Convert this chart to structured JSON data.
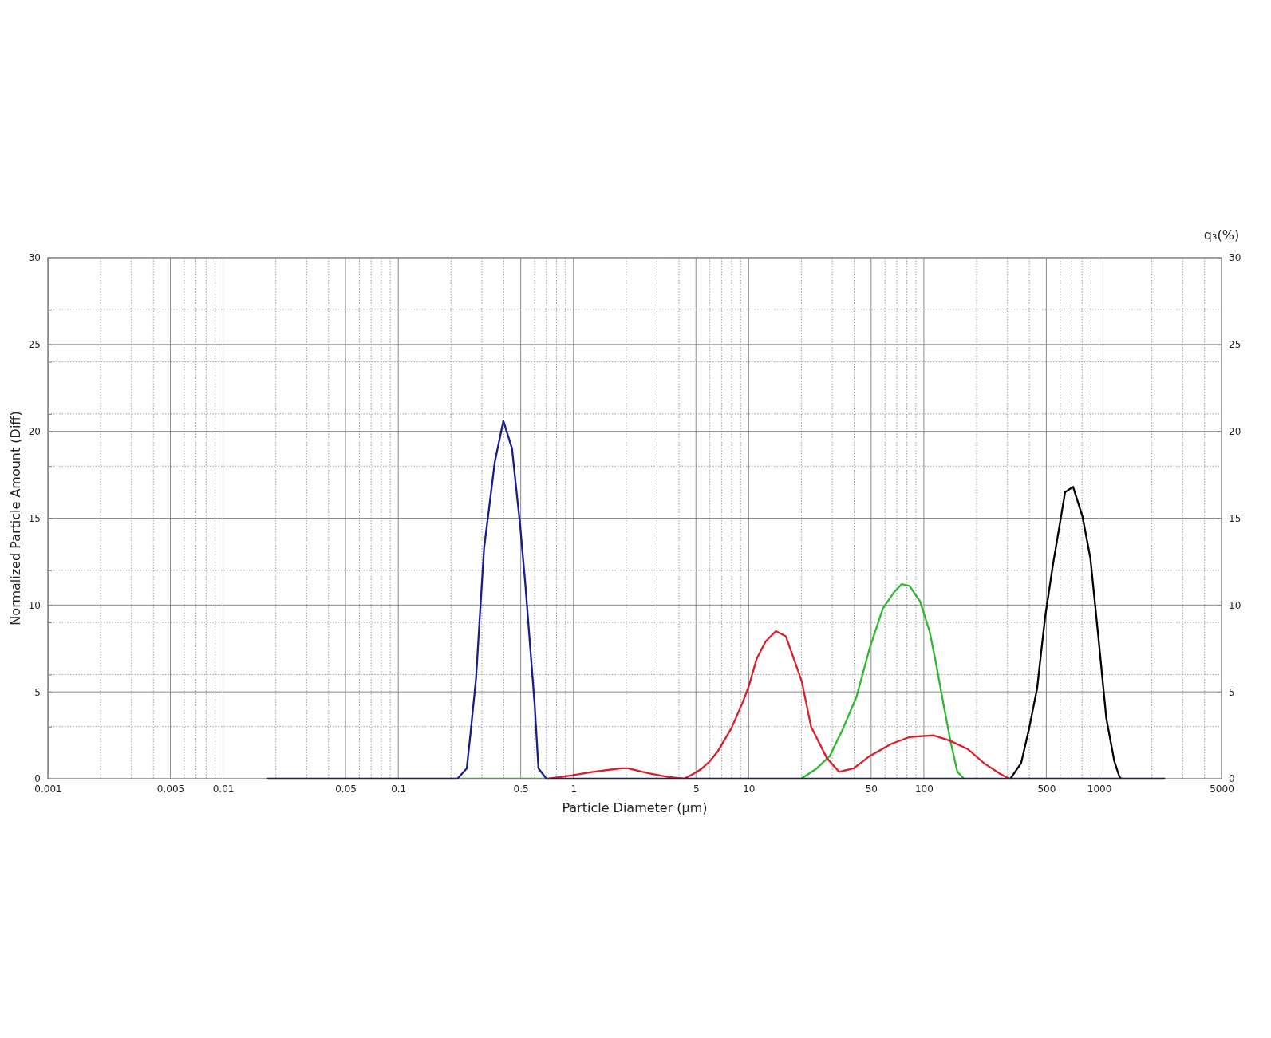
{
  "chart_data": {
    "type": "line",
    "xlabel": "Particle Diameter (μm)",
    "ylabel": "Normalized Particle Amount (Diff)",
    "y2label": "q₃(%)",
    "log": "x",
    "xlim": [
      0.001,
      5000
    ],
    "xticks": [
      0.001,
      {
        "value": 0.002,
        "label": null
      },
      {
        "value": 0.003,
        "label": null
      },
      {
        "value": 0.004,
        "label": null
      },
      0.005,
      {
        "value": 0.006,
        "label": null
      },
      {
        "value": 0.007,
        "label": null
      },
      {
        "value": 0.008,
        "label": null
      },
      {
        "value": 0.009,
        "label": null
      },
      0.01,
      {
        "value": 0.02,
        "label": null
      },
      {
        "value": 0.03,
        "label": null
      },
      {
        "value": 0.04,
        "label": null
      },
      0.05,
      {
        "value": 0.06,
        "label": null
      },
      {
        "value": 0.07,
        "label": null
      },
      {
        "value": 0.08,
        "label": null
      },
      {
        "value": 0.09,
        "label": null
      },
      0.1,
      {
        "value": 0.2,
        "label": null
      },
      {
        "value": 0.3,
        "label": null
      },
      {
        "value": 0.4,
        "label": null
      },
      0.5,
      {
        "value": 0.6,
        "label": null
      },
      {
        "value": 0.7,
        "label": null
      },
      {
        "value": 0.8,
        "label": null
      },
      {
        "value": 0.9,
        "label": null
      },
      1,
      {
        "value": 2,
        "label": null
      },
      {
        "value": 3,
        "label": null
      },
      {
        "value": 4,
        "label": null
      },
      5,
      {
        "value": 6,
        "label": null
      },
      {
        "value": 7,
        "label": null
      },
      {
        "value": 8,
        "label": null
      },
      {
        "value": 9,
        "label": null
      },
      10,
      {
        "value": 20,
        "label": null
      },
      {
        "value": 30,
        "label": null
      },
      {
        "value": 40,
        "label": null
      },
      50,
      {
        "value": 60,
        "label": null
      },
      {
        "value": 70,
        "label": null
      },
      {
        "value": 80,
        "label": null
      },
      {
        "value": 90,
        "label": null
      },
      100,
      {
        "value": 200,
        "label": null
      },
      {
        "value": 300,
        "label": null
      },
      {
        "value": 400,
        "label": null
      },
      500,
      {
        "value": 600,
        "label": null
      },
      {
        "value": 700,
        "label": null
      },
      {
        "value": 800,
        "label": null
      },
      {
        "value": 900,
        "label": null
      },
      1000,
      {
        "value": 2000,
        "label": null
      },
      {
        "value": 3000,
        "label": null
      },
      {
        "value": 4000,
        "label": null
      },
      5000
    ],
    "ylim": [
      0,
      30
    ],
    "yticks": [
      0,
      {
        "value": 3,
        "label": null
      },
      5,
      {
        "value": 6,
        "label": null
      },
      {
        "value": 9,
        "label": null
      },
      10,
      {
        "value": 12,
        "label": null
      },
      15,
      {
        "value": 18,
        "label": null
      },
      20,
      {
        "value": 21,
        "label": null
      },
      {
        "value": 24,
        "label": null
      },
      25,
      {
        "value": 27,
        "label": null
      },
      30
    ],
    "y2lim": [
      0,
      30
    ],
    "y2ticks": [
      0,
      5,
      10,
      15,
      20,
      25,
      30
    ],
    "grid": true,
    "series": [
      {
        "color": "#2eb82e",
        "x": [
          0.228,
          0.7,
          3,
          19.9,
          24.5,
          29,
          34.6,
          41.2,
          49,
          58.3,
          67.1,
          74.6,
          82.8,
          95.2,
          107.7,
          117.5,
          130.4,
          142.3,
          155.3,
          169.4
        ],
        "values": [
          0,
          0,
          null,
          0,
          0.6,
          1.3,
          2.9,
          4.7,
          7.5,
          9.8,
          10.7,
          11.2,
          11.1,
          10.2,
          8.5,
          6.6,
          4.1,
          2.1,
          0.4,
          0
        ]
      },
      {
        "color": "#dc1e2a",
        "x": [
          0.72,
          0.986,
          1.29,
          1.88,
          2.04,
          2.72,
          3.49,
          4.3,
          5.07,
          5.42,
          5.99,
          6.68,
          7.96,
          9.16,
          10,
          11.1,
          12.5,
          14.3,
          16.3,
          18.4,
          20.1,
          22.7,
          27.9,
          32.8,
          39.8,
          49,
          64.9,
          82.8,
          113.4,
          140,
          178.6,
          220,
          271,
          307
        ],
        "values": [
          0,
          0.2,
          0.4,
          0.6,
          0.6,
          0.3,
          0.1,
          0,
          0.4,
          0.6,
          1,
          1.6,
          2.9,
          4.3,
          5.3,
          6.9,
          7.9,
          8.5,
          8.2,
          6.7,
          5.6,
          3,
          1.2,
          0.4,
          0.6,
          1.3,
          2,
          2.4,
          2.5,
          2.2,
          1.7,
          0.9,
          0.3,
          0
        ]
      },
      {
        "color": "#000000",
        "x": [
          312,
          359,
          399,
          443,
          492,
          547,
          607,
          640,
          711,
          804,
          892,
          990,
          1099,
          1222,
          1309,
          1340
        ],
        "values": [
          0,
          0.9,
          2.9,
          5.2,
          9.3,
          12.4,
          15.1,
          16.5,
          16.8,
          15.1,
          12.7,
          8.2,
          3.5,
          1,
          0.1,
          0
        ]
      },
      {
        "color": "#141e8c",
        "x": [
          0.018,
          0.2175,
          0.246,
          0.259,
          0.278,
          0.293,
          0.309,
          0.331,
          0.355,
          0.398,
          0.446,
          0.47,
          0.495,
          0.531,
          0.569,
          0.6,
          0.631,
          0.701,
          2360
        ],
        "values": [
          0,
          0,
          0.6,
          2.7,
          5.8,
          9.6,
          13.3,
          15.7,
          18.2,
          20.6,
          19,
          16.8,
          14.7,
          11.2,
          7.3,
          4.3,
          0.6,
          0,
          0
        ]
      }
    ]
  }
}
